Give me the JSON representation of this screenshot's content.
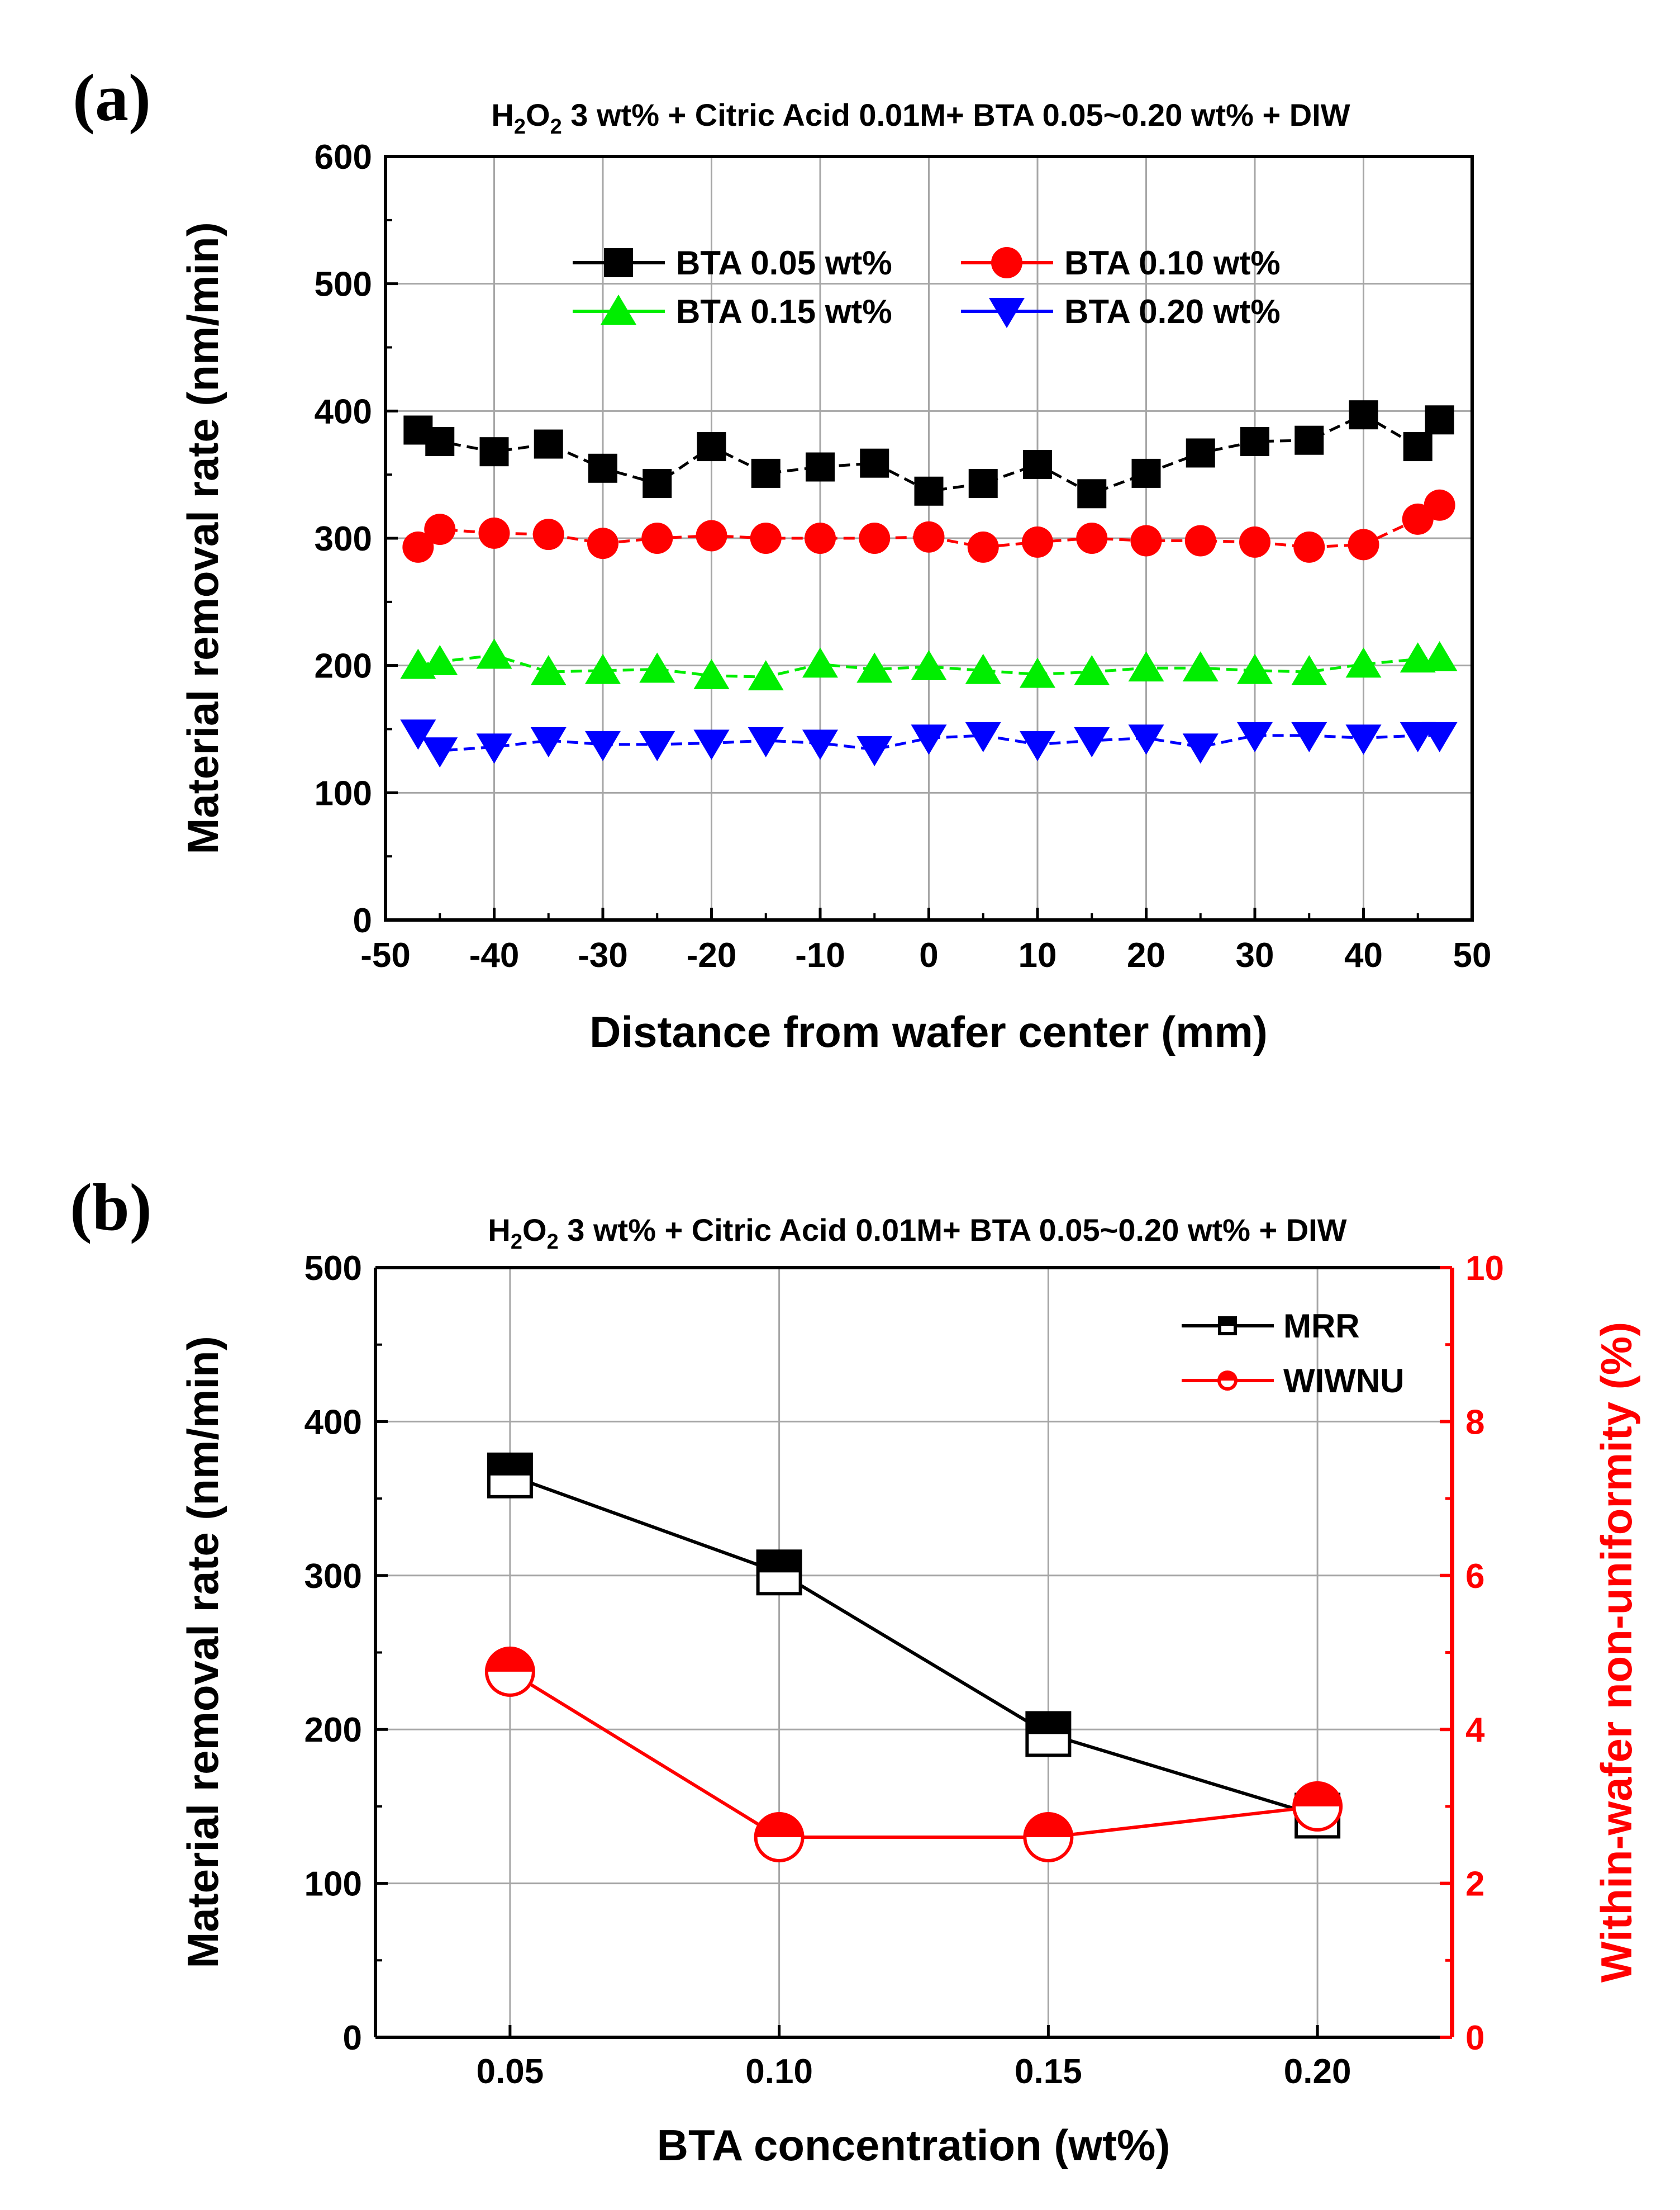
{
  "chart_data": [
    {
      "type": "line",
      "panel": "(a)",
      "title": {
        "main": "H",
        "sub1": "2",
        "mid": "O",
        "sub2": "2",
        "rest": " 3 wt% + Citric Acid 0.01M+ BTA 0.05~0.20 wt% + DIW"
      },
      "xlabel": "Distance from wafer center (mm)",
      "ylabel": "Material removal rate (nm/min)",
      "xlim": [
        -50,
        50
      ],
      "ylim": [
        0,
        600
      ],
      "xticks": [
        "-50",
        "-40",
        "-30",
        "-20",
        "-10",
        "0",
        "10",
        "20",
        "30",
        "40",
        "50"
      ],
      "yticks": [
        "0",
        "100",
        "200",
        "300",
        "400",
        "500",
        "600"
      ],
      "grid": true,
      "legend_position": "top-center",
      "x": [
        -47,
        -45,
        -40,
        -35,
        -30,
        -25,
        -20,
        -15,
        -10,
        -5,
        0,
        5,
        10,
        15,
        20,
        25,
        30,
        35,
        40,
        45,
        47
      ],
      "series": [
        {
          "name": "BTA 0.05 wt%",
          "color": "#000000",
          "marker": "square",
          "values": [
            385,
            376,
            368,
            374,
            355,
            343,
            372,
            351,
            356,
            359,
            337,
            343,
            358,
            335,
            351,
            367,
            376,
            377,
            397,
            372,
            393
          ]
        },
        {
          "name": "BTA 0.10 wt%",
          "color": "#ff0000",
          "marker": "circle",
          "values": [
            293,
            307,
            304,
            303,
            296,
            300,
            302,
            300,
            300,
            300,
            301,
            293,
            297,
            300,
            298,
            298,
            297,
            293,
            295,
            315,
            326
          ]
        },
        {
          "name": "BTA 0.15 wt%",
          "color": "#00ee00",
          "marker": "triangle-up",
          "values": [
            200,
            203,
            208,
            195,
            196,
            197,
            192,
            191,
            201,
            197,
            199,
            196,
            193,
            195,
            198,
            198,
            196,
            195,
            201,
            205,
            206
          ]
        },
        {
          "name": "BTA 0.20 wt%",
          "color": "#0000ff",
          "marker": "triangle-down",
          "values": [
            147,
            133,
            136,
            141,
            138,
            138,
            139,
            141,
            139,
            134,
            143,
            145,
            138,
            141,
            143,
            136,
            145,
            145,
            143,
            145,
            145
          ]
        }
      ]
    },
    {
      "type": "line",
      "panel": "(b)",
      "title": {
        "main": "H",
        "sub1": "2",
        "mid": "O",
        "sub2": "2",
        "rest": " 3 wt% + Citric Acid 0.01M+ BTA 0.05~0.20 wt% + DIW"
      },
      "xlabel": "BTA concentration (wt%)",
      "ylabel": "Material removal rate (nm/min)",
      "y2label": "Within-wafer non-uniformity (%)",
      "categories": [
        "0.05",
        "0.10",
        "0.15",
        "0.20"
      ],
      "xlim": [
        0.025,
        0.225
      ],
      "ylim": [
        0,
        500
      ],
      "y2lim": [
        0,
        10
      ],
      "yticks": [
        "0",
        "100",
        "200",
        "300",
        "400",
        "500"
      ],
      "y2ticks": [
        "0",
        "2",
        "4",
        "6",
        "8",
        "10"
      ],
      "grid": true,
      "legend_position": "top-right",
      "x": [
        0.05,
        0.1,
        0.15,
        0.2
      ],
      "series": [
        {
          "name": "MRR",
          "axis": "left",
          "color": "#000000",
          "marker": "half-square",
          "values": [
            365,
            302,
            197,
            144
          ]
        },
        {
          "name": "WIWNU",
          "axis": "right",
          "color": "#ff0000",
          "marker": "half-circle",
          "values": [
            4.75,
            2.6,
            2.6,
            3.0
          ]
        }
      ]
    }
  ]
}
